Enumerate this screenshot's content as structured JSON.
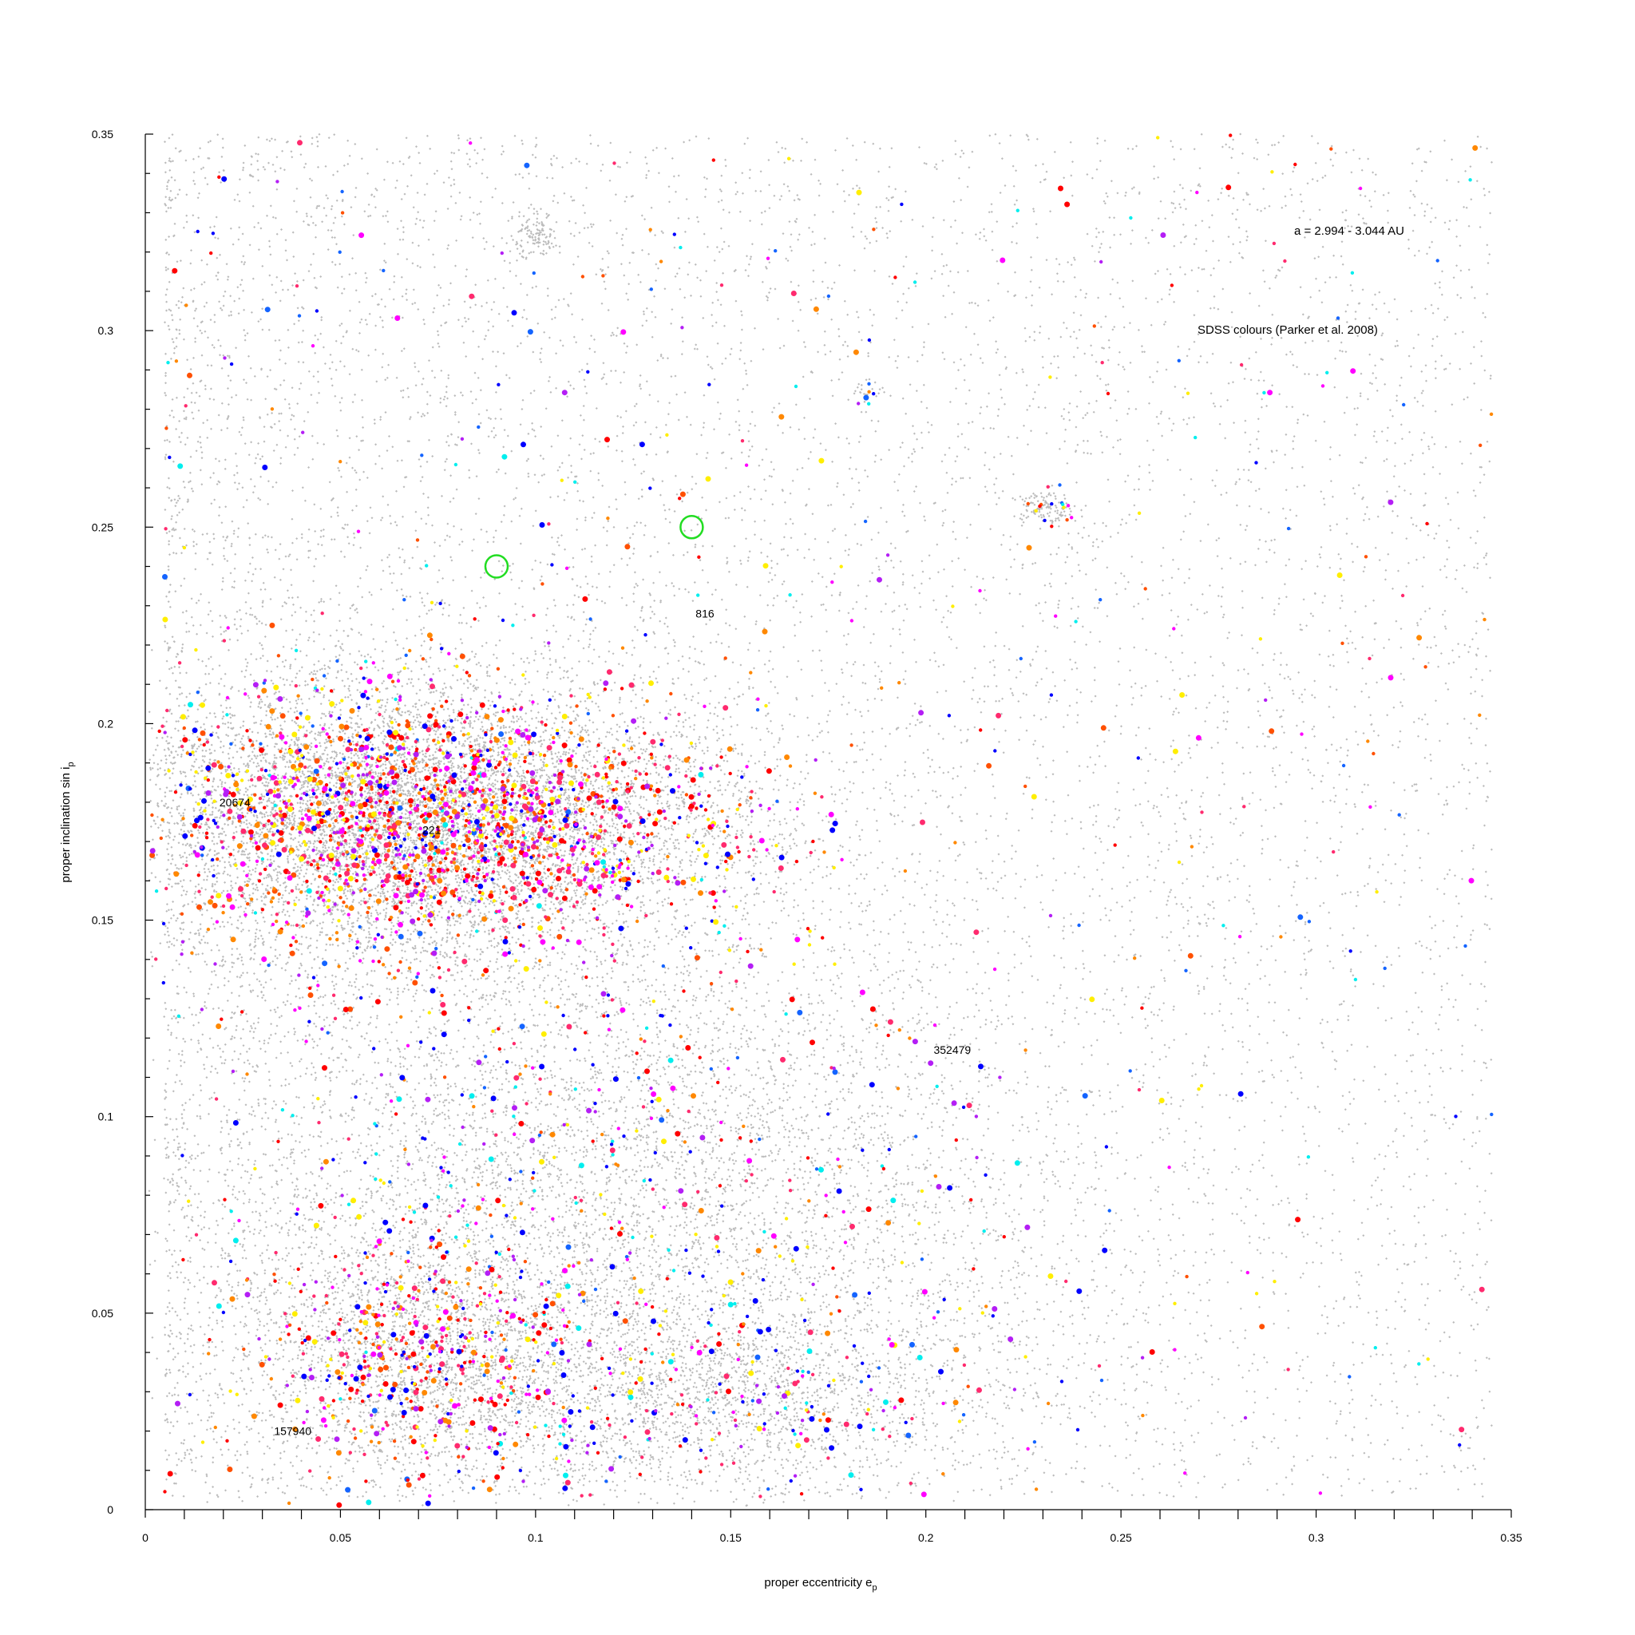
{
  "chart_data": {
    "type": "scatter",
    "xlabel": "proper eccentricity e",
    "xlabel_sub": "p",
    "ylabel": "proper inclination sin i",
    "ylabel_sub": "p",
    "xlim": [
      0,
      0.35
    ],
    "ylim": [
      0,
      0.35
    ],
    "x_ticks": [
      0,
      0.05,
      0.1,
      0.15,
      0.2,
      0.25,
      0.3,
      0.35
    ],
    "y_ticks": [
      0,
      0.05,
      0.1,
      0.15,
      0.2,
      0.25,
      0.3,
      0.35
    ],
    "x_tick_labels": [
      "0",
      "0.05",
      "0.1",
      "0.15",
      "0.2",
      "0.25",
      "0.3",
      "0.35"
    ],
    "y_tick_labels": [
      "0",
      "0.05",
      "0.1",
      "0.15",
      "0.2",
      "0.25",
      "0.3",
      "0.35"
    ],
    "grid": false,
    "annotations": [
      "a = 2.994 - 3.044 AU",
      "SDSS colours (Parker et al. 2008)"
    ],
    "labeled_objects": [
      {
        "name": "20674",
        "x": 0.019,
        "y": 0.179
      },
      {
        "name": "221",
        "x": 0.071,
        "y": 0.172
      },
      {
        "name": "816",
        "x": 0.141,
        "y": 0.227
      },
      {
        "name": "352479",
        "x": 0.202,
        "y": 0.116
      },
      {
        "name": "157940",
        "x": 0.033,
        "y": 0.019
      }
    ],
    "highlight_circles": [
      {
        "x": 0.09,
        "y": 0.24
      },
      {
        "x": 0.14,
        "y": 0.25
      }
    ],
    "highlight_color": "#22dd22",
    "background_color": "#bbbbbb",
    "sdss_colors": [
      "#ff0000",
      "#ff2a6e",
      "#ff00ff",
      "#b41ef5",
      "#0000ff",
      "#1464ff",
      "#ff8800",
      "#ffee00",
      "#00eeee",
      "#ff5000"
    ],
    "clusters": [
      {
        "x": 0.078,
        "y": 0.177,
        "sx": 0.04,
        "sy": 0.016,
        "n": 6500,
        "colored_frac": 0.22,
        "palette": "red"
      },
      {
        "x": 0.06,
        "y": 0.175,
        "sx": 0.03,
        "sy": 0.022,
        "n": 2500,
        "colored_frac": 0.14,
        "palette": "mixed"
      },
      {
        "x": 0.12,
        "y": 0.075,
        "sx": 0.055,
        "sy": 0.04,
        "n": 5500,
        "colored_frac": 0.09,
        "palette": "blue"
      },
      {
        "x": 0.07,
        "y": 0.04,
        "sx": 0.02,
        "sy": 0.016,
        "n": 1800,
        "colored_frac": 0.22,
        "palette": "red"
      },
      {
        "x": 0.145,
        "y": 0.028,
        "sx": 0.035,
        "sy": 0.012,
        "n": 1500,
        "colored_frac": 0.12,
        "palette": "blue"
      },
      {
        "x": 0.1,
        "y": 0.325,
        "sx": 0.003,
        "sy": 0.003,
        "n": 120,
        "colored_frac": 0.0,
        "palette": "mixed"
      },
      {
        "x": 0.231,
        "y": 0.255,
        "sx": 0.004,
        "sy": 0.002,
        "n": 130,
        "colored_frac": 0.1,
        "palette": "mixed"
      },
      {
        "x": 0.184,
        "y": 0.284,
        "sx": 0.002,
        "sy": 0.002,
        "n": 25,
        "colored_frac": 0.3,
        "palette": "mixed"
      },
      {
        "x": 0.12,
        "y": 0.162,
        "sx": 0.004,
        "sy": 0.003,
        "n": 40,
        "colored_frac": 0.6,
        "palette": "blue"
      }
    ],
    "background_points": 11000,
    "uniform_region": {
      "xlim": [
        0.005,
        0.345
      ],
      "ylim": [
        0.003,
        0.35
      ]
    }
  }
}
